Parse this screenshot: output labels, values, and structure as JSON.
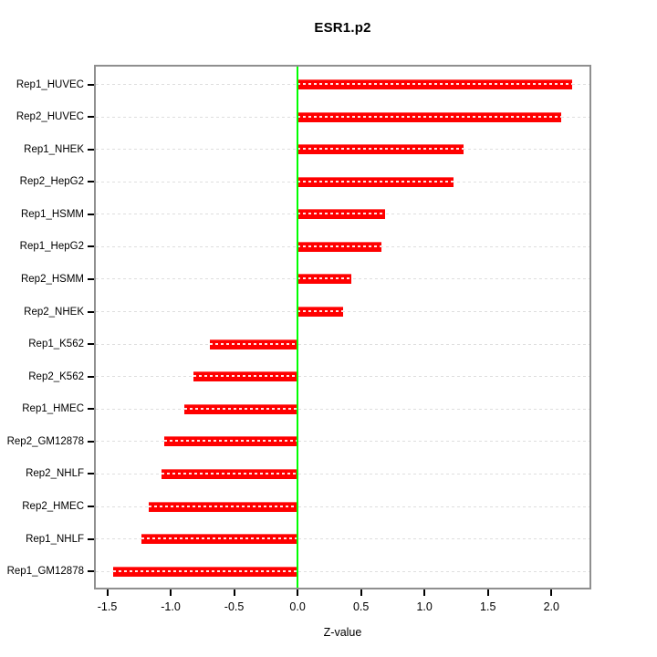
{
  "chart_data": {
    "type": "bar",
    "orientation": "horizontal",
    "title": "ESR1.p2",
    "xlabel": "Z-value",
    "ylabel": "",
    "categories": [
      "Rep1_HUVEC",
      "Rep2_HUVEC",
      "Rep1_NHEK",
      "Rep2_HepG2",
      "Rep1_HSMM",
      "Rep1_HepG2",
      "Rep2_HSMM",
      "Rep2_NHEK",
      "Rep1_K562",
      "Rep2_K562",
      "Rep1_HMEC",
      "Rep2_GM12878",
      "Rep2_NHLF",
      "Rep2_HMEC",
      "Rep1_NHLF",
      "Rep1_GM12878"
    ],
    "values": [
      2.16,
      2.08,
      1.31,
      1.23,
      0.69,
      0.66,
      0.42,
      0.36,
      -0.69,
      -0.82,
      -0.89,
      -1.05,
      -1.07,
      -1.17,
      -1.23,
      -1.45
    ],
    "xlim": [
      -1.59,
      2.3
    ],
    "xticks": [
      -1.5,
      -1.0,
      -0.5,
      0.0,
      0.5,
      1.0,
      1.5,
      2.0
    ],
    "xtick_labels": [
      "-1.5",
      "-1.0",
      "-0.5",
      "0.0",
      "0.5",
      "1.0",
      "1.5",
      "2.0"
    ],
    "grid": true,
    "grid_style": "dashed",
    "zero_line": 0.0,
    "legend": null,
    "colors": {
      "bar": "#ff0000",
      "zero_line": "#00ff00",
      "grid": "#dedede",
      "border": "#8f8f8f",
      "text": "#000000",
      "background": "#ffffff"
    }
  }
}
